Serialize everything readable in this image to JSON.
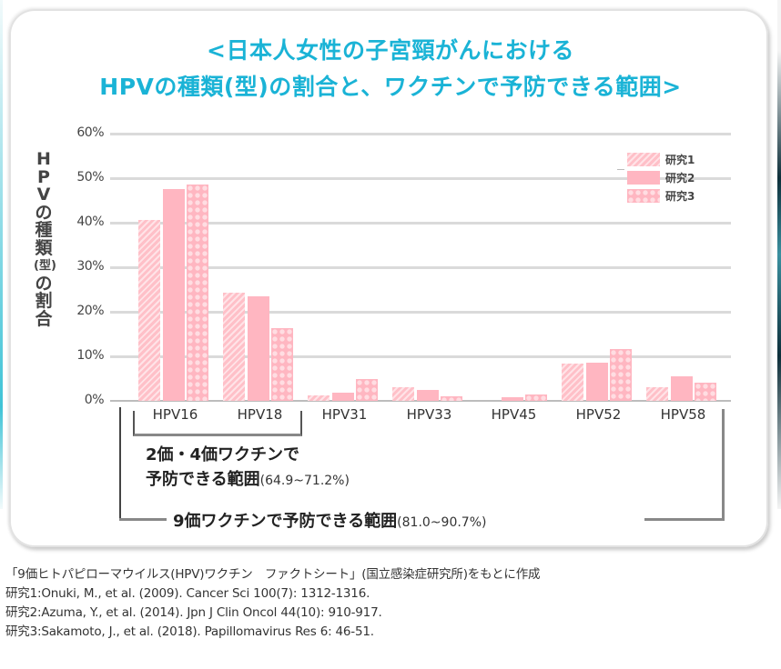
{
  "title": {
    "line1": "<日本人女性の子宮頸がんにおける",
    "line2": "HPVの種類(型)の割合と、ワクチンで予防できる範囲>",
    "color": "#1ab3d6"
  },
  "colors": {
    "bar": "#ffb6c1",
    "grid": "#dadada"
  },
  "chart_data": {
    "type": "bar",
    "title": "<日本人女性の子宮頸がんにおけるHPVの種類(型)の割合と、ワクチンで予防できる範囲>",
    "xlabel": "",
    "ylabel": "HPVの種類(型)の割合",
    "ylim": [
      0,
      60
    ],
    "yticks": [
      "0%",
      "10%",
      "20%",
      "30%",
      "40%",
      "50%",
      "60%"
    ],
    "grid": true,
    "legend_position": "upper right",
    "categories": [
      "HPV16",
      "HPV18",
      "HPV31",
      "HPV33",
      "HPV45",
      "HPV52",
      "HPV58"
    ],
    "series": [
      {
        "name": "研究1",
        "pattern": "diagonal-stripes",
        "values": [
          40.7,
          24.3,
          1.3,
          3.0,
          0.0,
          8.4,
          3.1
        ]
      },
      {
        "name": "研究2",
        "pattern": "solid",
        "values": [
          47.6,
          23.5,
          1.8,
          2.5,
          0.9,
          8.6,
          5.5
        ]
      },
      {
        "name": "研究3",
        "pattern": "dots",
        "values": [
          48.6,
          16.3,
          5.0,
          1.0,
          1.4,
          11.7,
          4.0
        ]
      }
    ],
    "annotations": [
      {
        "text": "2価・4価ワクチンで予防できる範囲(64.9~71.2%)",
        "covers": [
          "HPV16",
          "HPV18"
        ]
      },
      {
        "text": "9価ワクチンで予防できる範囲(81.0~90.7%)",
        "covers": [
          "HPV16",
          "HPV18",
          "HPV31",
          "HPV33",
          "HPV45",
          "HPV52",
          "HPV58"
        ]
      }
    ]
  },
  "yaxis": {
    "label_chars": [
      "H",
      "P",
      "V",
      "の",
      "種",
      "類",
      "(型)",
      "の",
      "割",
      "合"
    ],
    "ticks": [
      {
        "label": "60%",
        "value": 60
      },
      {
        "label": "50%",
        "value": 50
      },
      {
        "label": "40%",
        "value": 40
      },
      {
        "label": "30%",
        "value": 30
      },
      {
        "label": "20%",
        "value": 20
      },
      {
        "label": "10%",
        "value": 10
      },
      {
        "label": "0%",
        "value": 0
      }
    ]
  },
  "legend": [
    "研究1",
    "研究2",
    "研究3"
  ],
  "brackets": {
    "bivalent_line1": "2価・4価ワクチンで",
    "bivalent_line2": "予防できる範囲",
    "bivalent_pct": "(64.9~71.2%)",
    "nonavalent": "9価ワクチンで予防できる範囲",
    "nonavalent_pct": "(81.0~90.7%)"
  },
  "footer": [
    "「9価ヒトパピローマウイルス(HPV)ワクチン　ファクトシート」(国立感染症研究所)をもとに作成",
    "研究1:Onuki, M., et al. (2009). Cancer Sci 100(7): 1312-1316.",
    "研究2:Azuma, Y., et al. (2014).  Jpn J Clin Oncol 44(10): 910-917.",
    "研究3:Sakamoto, J., et al. (2018). Papillomavirus Res 6: 46-51."
  ]
}
